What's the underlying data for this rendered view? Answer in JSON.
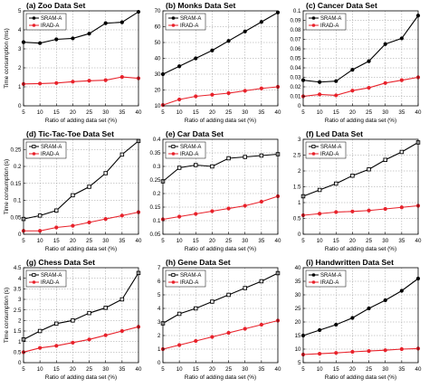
{
  "chart_data": [
    {
      "type": "line",
      "title": "(a) Zoo Data Set",
      "xlabel": "Ratio of adding data set (%)",
      "ylabel": "Time consumption (ms)",
      "x": [
        5,
        10,
        15,
        20,
        25,
        30,
        35,
        40
      ],
      "xticks": [
        "5",
        "10",
        "15",
        "20",
        "25",
        "30",
        "35",
        "40"
      ],
      "xlim": [
        5,
        40
      ],
      "ylim": [
        0,
        5
      ],
      "yticks": [
        0,
        1,
        2,
        3,
        4,
        5
      ],
      "ytick_labels": [
        "0",
        "1",
        "2",
        "3",
        "4",
        "5"
      ],
      "grid": true,
      "legend": "top-left",
      "series": [
        {
          "name": "SRAM-A",
          "color": "#000000",
          "marker": "circle",
          "values": [
            3.35,
            3.3,
            3.5,
            3.55,
            3.8,
            4.35,
            4.4,
            4.95
          ]
        },
        {
          "name": "IRAD-A",
          "color": "#e8222b",
          "marker": "circle",
          "values": [
            1.15,
            1.17,
            1.2,
            1.27,
            1.32,
            1.35,
            1.52,
            1.45
          ]
        }
      ]
    },
    {
      "type": "line",
      "title": "(b) Monks Data Set",
      "xlabel": "Ratio of adding data set (%)",
      "ylabel": "",
      "x": [
        5,
        10,
        15,
        20,
        25,
        30,
        35,
        40
      ],
      "xticks": [
        "5",
        "10",
        "15",
        "20",
        "25",
        "30",
        "35",
        "40"
      ],
      "xlim": [
        5,
        40
      ],
      "ylim": [
        10,
        70
      ],
      "yticks": [
        10,
        20,
        30,
        40,
        50,
        60,
        70
      ],
      "ytick_labels": [
        "10",
        "20",
        "30",
        "40",
        "50",
        "60",
        "70"
      ],
      "grid": true,
      "legend": "top-left",
      "series": [
        {
          "name": "SRAM-A",
          "color": "#000000",
          "marker": "circle",
          "values": [
            30,
            35,
            40,
            45,
            51,
            57,
            63,
            69
          ]
        },
        {
          "name": "IRAD-A",
          "color": "#e8222b",
          "marker": "circle",
          "values": [
            10.5,
            14,
            16,
            17,
            18,
            19.5,
            21,
            22
          ]
        }
      ]
    },
    {
      "type": "line",
      "title": "(c) Cancer Data Set",
      "xlabel": "Ratio of adding data set (%)",
      "ylabel": "",
      "x": [
        5,
        10,
        15,
        20,
        25,
        30,
        35,
        40
      ],
      "xticks": [
        "5",
        "10",
        "15",
        "20",
        "25",
        "30",
        "35",
        "40"
      ],
      "xlim": [
        5,
        40
      ],
      "ylim": [
        0,
        0.1
      ],
      "yticks": [
        0,
        0.01,
        0.02,
        0.03,
        0.04,
        0.05,
        0.06,
        0.07,
        0.08,
        0.09,
        0.1
      ],
      "ytick_labels": [
        "0",
        "0.01",
        "0.02",
        "0.03",
        "0.04",
        "0.05",
        "0.06",
        "0.07",
        "0.08",
        "0.09",
        "0.1"
      ],
      "grid": true,
      "legend": "top-left",
      "series": [
        {
          "name": "SRAM-A",
          "color": "#000000",
          "marker": "circle",
          "values": [
            0.027,
            0.025,
            0.026,
            0.038,
            0.047,
            0.065,
            0.071,
            0.095
          ]
        },
        {
          "name": "IRAD-A",
          "color": "#e8222b",
          "marker": "circle",
          "values": [
            0.01,
            0.012,
            0.011,
            0.016,
            0.019,
            0.024,
            0.027,
            0.03
          ]
        }
      ]
    },
    {
      "type": "line",
      "title": "(d) Tic-Tac-Toe Data Set",
      "xlabel": "Ratio of adding data set (%)",
      "ylabel": "Time consumption (s)",
      "x": [
        5,
        10,
        15,
        20,
        25,
        30,
        35,
        40
      ],
      "xticks": [
        "5",
        "10",
        "15",
        "20",
        "25",
        "30",
        "35",
        "40"
      ],
      "xlim": [
        5,
        40
      ],
      "ylim": [
        0,
        0.28
      ],
      "yticks": [
        0,
        0.05,
        0.1,
        0.15,
        0.2,
        0.25
      ],
      "ytick_labels": [
        "0",
        "0.05",
        "0.1",
        "0.15",
        "0.2",
        "0.25"
      ],
      "grid": true,
      "legend": "top-left",
      "series": [
        {
          "name": "SRAM-A",
          "color": "#000000",
          "marker": "square",
          "values": [
            0.045,
            0.055,
            0.07,
            0.115,
            0.14,
            0.18,
            0.235,
            0.275
          ]
        },
        {
          "name": "IRAD-A",
          "color": "#e8222b",
          "marker": "circle",
          "values": [
            0.01,
            0.01,
            0.02,
            0.025,
            0.035,
            0.045,
            0.055,
            0.065
          ]
        }
      ]
    },
    {
      "type": "line",
      "title": "(e) Car Data Set",
      "xlabel": "Ratio of adding data set (%)",
      "ylabel": "",
      "x": [
        5,
        10,
        15,
        20,
        25,
        30,
        35,
        40
      ],
      "xticks": [
        "5",
        "10",
        "15",
        "20",
        "25",
        "30",
        "35",
        "40"
      ],
      "xlim": [
        5,
        40
      ],
      "ylim": [
        0.05,
        0.4
      ],
      "yticks": [
        0.05,
        0.1,
        0.15,
        0.2,
        0.25,
        0.3,
        0.35,
        0.4
      ],
      "ytick_labels": [
        "0.05",
        "0.1",
        "0.15",
        "0.2",
        "0.25",
        "0.3",
        "0.35",
        "0.4"
      ],
      "grid": true,
      "legend": "top-left",
      "series": [
        {
          "name": "SRAM-A",
          "color": "#000000",
          "marker": "square",
          "values": [
            0.245,
            0.295,
            0.305,
            0.3,
            0.33,
            0.335,
            0.34,
            0.345
          ]
        },
        {
          "name": "IRAD-A",
          "color": "#e8222b",
          "marker": "circle",
          "values": [
            0.105,
            0.115,
            0.125,
            0.135,
            0.145,
            0.155,
            0.17,
            0.19
          ]
        }
      ]
    },
    {
      "type": "line",
      "title": "(f) Led Data Set",
      "xlabel": "Ratio of adding data set (%)",
      "ylabel": "",
      "x": [
        5,
        10,
        15,
        20,
        25,
        30,
        35,
        40
      ],
      "xticks": [
        "5",
        "10",
        "15",
        "20",
        "25",
        "30",
        "35",
        "40"
      ],
      "xlim": [
        5,
        40
      ],
      "ylim": [
        0,
        3
      ],
      "yticks": [
        0,
        0.5,
        1,
        1.5,
        2,
        2.5,
        3
      ],
      "ytick_labels": [
        "0",
        "0.5",
        "1",
        "1.5",
        "2",
        "2.5",
        "3"
      ],
      "grid": true,
      "legend": "top-left",
      "series": [
        {
          "name": "SRAM-A",
          "color": "#000000",
          "marker": "square",
          "values": [
            1.2,
            1.4,
            1.6,
            1.85,
            2.05,
            2.35,
            2.6,
            2.9
          ]
        },
        {
          "name": "IRAD-A",
          "color": "#e8222b",
          "marker": "circle",
          "values": [
            0.6,
            0.65,
            0.7,
            0.72,
            0.75,
            0.8,
            0.85,
            0.9
          ]
        }
      ]
    },
    {
      "type": "line",
      "title": "(g) Chess Data Set",
      "xlabel": "Ratio of adding data set (%)",
      "ylabel": "Time consumption (s)",
      "x": [
        5,
        10,
        15,
        20,
        25,
        30,
        35,
        40
      ],
      "xticks": [
        "5",
        "10",
        "15",
        "20",
        "25",
        "30",
        "35",
        "40"
      ],
      "xlim": [
        5,
        40
      ],
      "ylim": [
        0,
        4.5
      ],
      "yticks": [
        0,
        0.5,
        1,
        1.5,
        2,
        2.5,
        3,
        3.5,
        4,
        4.5
      ],
      "ytick_labels": [
        "0",
        "0.5",
        "1",
        "1.5",
        "2",
        "2.5",
        "3",
        "3.5",
        "4",
        "4.5"
      ],
      "grid": true,
      "legend": "top-left",
      "series": [
        {
          "name": "SRAM-A",
          "color": "#000000",
          "marker": "square",
          "values": [
            1.1,
            1.5,
            1.85,
            2.0,
            2.35,
            2.6,
            3.0,
            4.25
          ]
        },
        {
          "name": "IRAD-A",
          "color": "#e8222b",
          "marker": "circle",
          "values": [
            0.5,
            0.7,
            0.8,
            0.95,
            1.1,
            1.3,
            1.5,
            1.7
          ]
        }
      ]
    },
    {
      "type": "line",
      "title": "(h) Gene Data Set",
      "xlabel": "Ratio of adding data set (%)",
      "ylabel": "",
      "x": [
        5,
        10,
        15,
        20,
        25,
        30,
        35,
        40
      ],
      "xticks": [
        "5",
        "10",
        "15",
        "20",
        "25",
        "30",
        "35",
        "40"
      ],
      "xlim": [
        5,
        40
      ],
      "ylim": [
        0,
        7
      ],
      "yticks": [
        0,
        1,
        2,
        3,
        4,
        5,
        6,
        7
      ],
      "ytick_labels": [
        "0",
        "1",
        "2",
        "3",
        "4",
        "5",
        "6",
        "7"
      ],
      "grid": true,
      "legend": "top-left",
      "series": [
        {
          "name": "SRAM-A",
          "color": "#000000",
          "marker": "square",
          "values": [
            2.9,
            3.6,
            4.0,
            4.5,
            5.0,
            5.5,
            6.0,
            6.6
          ]
        },
        {
          "name": "IRAD-A",
          "color": "#e8222b",
          "marker": "circle",
          "values": [
            1.0,
            1.3,
            1.6,
            1.9,
            2.2,
            2.5,
            2.8,
            3.1
          ]
        }
      ]
    },
    {
      "type": "line",
      "title": "(i) Handwritten Data Set",
      "xlabel": "Ratio of adding data set (%)",
      "ylabel": "",
      "x": [
        5,
        10,
        15,
        20,
        25,
        30,
        35,
        40
      ],
      "xticks": [
        "5",
        "10",
        "15",
        "20",
        "25",
        "30",
        "35",
        "40"
      ],
      "xlim": [
        5,
        40
      ],
      "ylim": [
        5,
        40
      ],
      "yticks": [
        5,
        10,
        15,
        20,
        25,
        30,
        35,
        40
      ],
      "ytick_labels": [
        "5",
        "10",
        "15",
        "20",
        "25",
        "30",
        "35",
        "40"
      ],
      "grid": true,
      "legend": "top-left",
      "series": [
        {
          "name": "SRAM-A",
          "color": "#000000",
          "marker": "circle",
          "values": [
            15,
            17,
            19,
            21.5,
            25,
            28,
            31.5,
            36
          ]
        },
        {
          "name": "IRAD-A",
          "color": "#e8222b",
          "marker": "circle",
          "values": [
            8,
            8.3,
            8.6,
            9,
            9.3,
            9.6,
            10,
            10.2
          ]
        }
      ]
    }
  ]
}
